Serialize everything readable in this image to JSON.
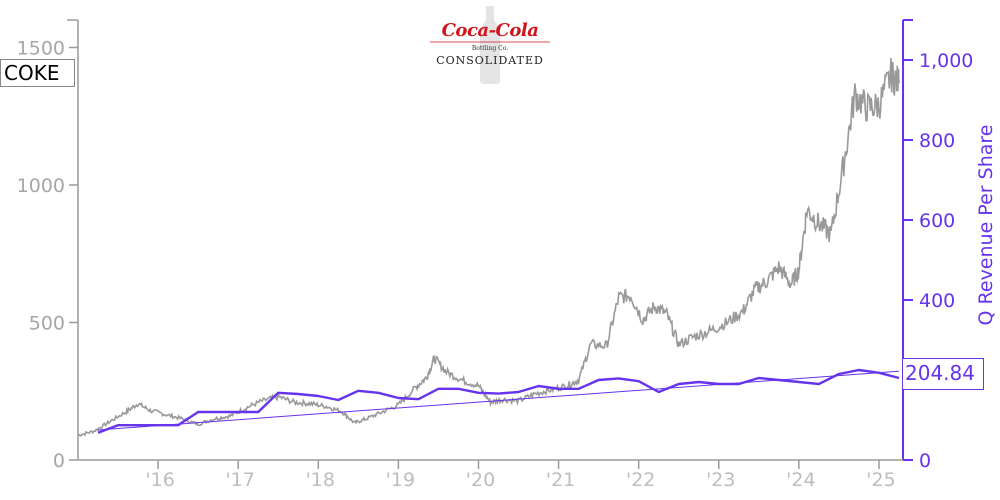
{
  "ticker": "COKE",
  "last_value_label": "204.84",
  "logo": {
    "script": "Coca-Cola",
    "sub": "Bottling Co.",
    "main": "CONSOLIDATED"
  },
  "colors": {
    "price": "#999999",
    "revenue": "#6633ee",
    "left_axis": "#a6a6a6",
    "x_labels": "#bdbdbd"
  },
  "chart_data": {
    "type": "line",
    "title": "",
    "ylabel_right": "Q Revenue Per Share",
    "x_ticks": [
      "'16",
      "'17",
      "'18",
      "'19",
      "'20",
      "'21",
      "'22",
      "'23",
      "'24",
      "'25"
    ],
    "y_left": {
      "range": [
        0,
        1600
      ],
      "ticks": [
        0,
        500,
        1000,
        1500
      ]
    },
    "y_right": {
      "range": [
        0,
        1100
      ],
      "ticks": [
        0,
        200,
        400,
        600,
        800,
        1000
      ],
      "tick_labels": [
        "0",
        "200",
        "400",
        "600",
        "800",
        "1,000"
      ]
    },
    "x_range": [
      2015.0,
      2025.3
    ],
    "series": [
      {
        "axis": "left",
        "x": [
          2015.0,
          2015.2,
          2015.4,
          2015.6,
          2015.75,
          2015.9,
          2016.1,
          2016.3,
          2016.5,
          2016.7,
          2016.9,
          2017.1,
          2017.3,
          2017.5,
          2017.7,
          2017.9,
          2018.1,
          2018.3,
          2018.45,
          2018.6,
          2018.8,
          2019.0,
          2019.2,
          2019.35,
          2019.45,
          2019.6,
          2019.8,
          2020.0,
          2020.15,
          2020.3,
          2020.5,
          2020.7,
          2020.9,
          2021.1,
          2021.25,
          2021.4,
          2021.6,
          2021.75,
          2021.9,
          2022.05,
          2022.2,
          2022.35,
          2022.5,
          2022.7,
          2022.9,
          2023.1,
          2023.3,
          2023.45,
          2023.6,
          2023.75,
          2023.9,
          2024.0,
          2024.1,
          2024.25,
          2024.4,
          2024.55,
          2024.7,
          2024.85,
          2025.0,
          2025.15,
          2025.25
        ],
        "values": [
          90,
          105,
          140,
          175,
          205,
          180,
          165,
          150,
          130,
          150,
          160,
          190,
          215,
          230,
          210,
          205,
          195,
          175,
          135,
          150,
          175,
          200,
          260,
          300,
          370,
          320,
          290,
          270,
          210,
          220,
          215,
          240,
          255,
          270,
          290,
          420,
          415,
          590,
          600,
          510,
          560,
          530,
          420,
          450,
          470,
          500,
          540,
          620,
          650,
          700,
          640,
          690,
          910,
          860,
          820,
          1060,
          1330,
          1280,
          1290,
          1400,
          1370
        ]
      },
      {
        "axis": "right",
        "name": "",
        "x": [
          2015.25,
          2015.5,
          2015.75,
          2016.0,
          2016.25,
          2016.5,
          2016.75,
          2017.0,
          2017.25,
          2017.5,
          2017.75,
          2018.0,
          2018.25,
          2018.5,
          2018.75,
          2019.0,
          2019.25,
          2019.5,
          2019.75,
          2020.0,
          2020.25,
          2020.5,
          2020.75,
          2021.0,
          2021.25,
          2021.5,
          2021.75,
          2022.0,
          2022.25,
          2022.5,
          2022.75,
          2023.0,
          2023.25,
          2023.5,
          2023.75,
          2024.0,
          2024.25,
          2024.5,
          2024.75,
          2025.0,
          2025.25
        ],
        "values": [
          68,
          87,
          87,
          87,
          87,
          120,
          120,
          120,
          120,
          168,
          165,
          160,
          150,
          173,
          168,
          155,
          152,
          178,
          178,
          168,
          166,
          170,
          185,
          178,
          178,
          200,
          204,
          197,
          170,
          190,
          195,
          190,
          190,
          205,
          200,
          195,
          190,
          215,
          225,
          218,
          205
        ]
      },
      {
        "axis": "right",
        "name": "",
        "x": [
          2015.25,
          2025.25
        ],
        "values": [
          75,
          222
        ]
      }
    ]
  }
}
